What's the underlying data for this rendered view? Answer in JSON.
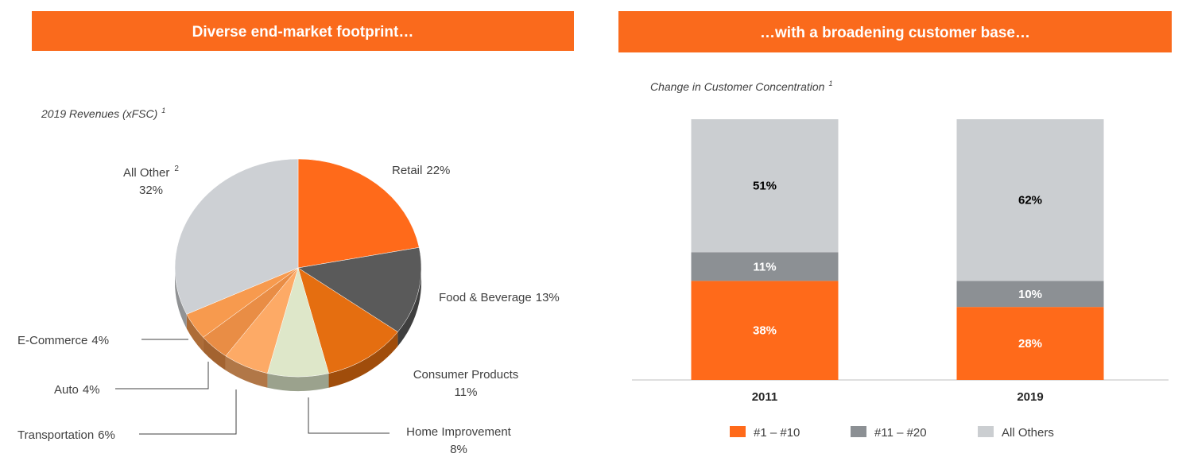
{
  "chart_data": [
    {
      "type": "pie",
      "header": "Diverse end-market footprint…",
      "subtitle": "2019 Revenues (xFSC)",
      "subtitle_note": "1",
      "categories": [
        "Retail",
        "Food & Beverage",
        "Consumer Products",
        "Home Improvement",
        "Transportation",
        "Auto",
        "E-Commerce",
        "All Other"
      ],
      "values": [
        22,
        13,
        11,
        8,
        6,
        4,
        4,
        32
      ],
      "value_labels": [
        "22%",
        "13%",
        "11%",
        "8%",
        "6%",
        "4%",
        "4%",
        "32%"
      ],
      "label_notes": [
        null,
        null,
        null,
        null,
        null,
        null,
        null,
        "2"
      ],
      "colors": [
        "#FF6A1A",
        "#5A5A5A",
        "#E56E10",
        "#DEE7C9",
        "#FDAA66",
        "#E98D45",
        "#F79A4E",
        "#CDD0D4"
      ]
    },
    {
      "type": "stacked_bar",
      "header": "…with a broadening customer base…",
      "subtitle": "Change in Customer Concentration",
      "subtitle_note": "1",
      "categories": [
        "2011",
        "2019"
      ],
      "ylim": [
        0,
        100
      ],
      "series": [
        {
          "name": "#1 – #10",
          "color": "#FF6A1A",
          "label_color": "#ffffff",
          "values": [
            38,
            28
          ],
          "value_labels": [
            "38%",
            "28%"
          ]
        },
        {
          "name": "#11 – #20",
          "color": "#8C9094",
          "label_color": "#ffffff",
          "values": [
            11,
            10
          ],
          "value_labels": [
            "11%",
            "10%"
          ]
        },
        {
          "name": "All Others",
          "color": "#CBCED1",
          "label_color": "#000000",
          "values": [
            51,
            62
          ],
          "value_labels": [
            "51%",
            "62%"
          ]
        }
      ]
    }
  ]
}
